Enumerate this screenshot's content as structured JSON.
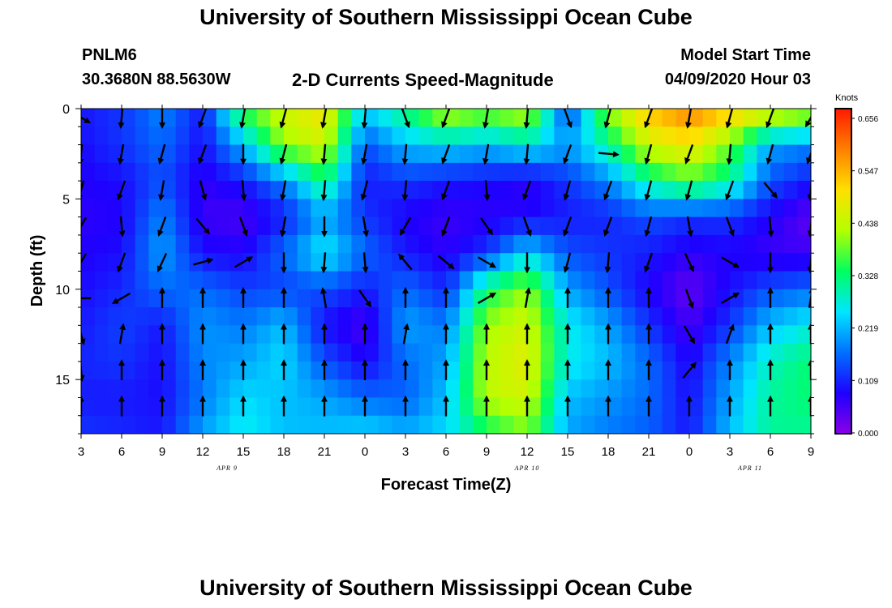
{
  "header": {
    "title": "University of Southern Mississippi Ocean Cube",
    "station": "PNLM6",
    "coords": "30.3680N 88.5630W",
    "subtitle": "2-D Currents Speed-Magnitude",
    "model_label": "Model Start Time",
    "model_time": "04/09/2020 Hour 03"
  },
  "footer": {
    "title": "University of Southern Mississippi Ocean Cube"
  },
  "colorbar": {
    "unit": "Knots",
    "ticks": [
      "0.656",
      "0.547",
      "0.438",
      "0.328",
      "0.219",
      "0.109",
      "0.000"
    ],
    "colors": [
      "#8a00e6",
      "#1e00ff",
      "#0070ff",
      "#00e6ff",
      "#00ff60",
      "#b4ff00",
      "#ffe000",
      "#ff8000",
      "#ff1a00"
    ]
  },
  "chart_data": {
    "type": "heatmap",
    "title": "2-D Currents Speed-Magnitude",
    "xlabel": "Forecast Time(Z)",
    "ylabel": "Depth (ft)",
    "xlim": [
      0,
      54
    ],
    "ylim": [
      0,
      18
    ],
    "x_ticks": [
      {
        "pos": 0,
        "label": "3"
      },
      {
        "pos": 3,
        "label": "6"
      },
      {
        "pos": 6,
        "label": "9"
      },
      {
        "pos": 9,
        "label": "12"
      },
      {
        "pos": 12,
        "label": "15"
      },
      {
        "pos": 15,
        "label": "18"
      },
      {
        "pos": 18,
        "label": "21"
      },
      {
        "pos": 21,
        "label": "0"
      },
      {
        "pos": 24,
        "label": "3"
      },
      {
        "pos": 27,
        "label": "6"
      },
      {
        "pos": 30,
        "label": "9"
      },
      {
        "pos": 33,
        "label": "12"
      },
      {
        "pos": 36,
        "label": "15"
      },
      {
        "pos": 39,
        "label": "18"
      },
      {
        "pos": 42,
        "label": "21"
      },
      {
        "pos": 45,
        "label": "0"
      },
      {
        "pos": 48,
        "label": "3"
      },
      {
        "pos": 51,
        "label": "6"
      },
      {
        "pos": 54,
        "label": "9"
      }
    ],
    "date_labels": [
      {
        "pos": 10.8,
        "label": "APR 9"
      },
      {
        "pos": 33,
        "label": "APR 10"
      },
      {
        "pos": 49.5,
        "label": "APR 11"
      }
    ],
    "y_ticks": [
      {
        "pos": 0,
        "label": "0"
      },
      {
        "pos": 5,
        "label": "5"
      },
      {
        "pos": 10,
        "label": "10"
      },
      {
        "pos": 15,
        "label": "15"
      }
    ],
    "value_range": [
      0.0,
      0.656
    ],
    "depths": [
      0,
      2,
      4,
      6,
      8,
      10,
      12,
      14,
      16,
      18
    ],
    "columns": [
      {
        "t": 0,
        "speed": [
          0.1,
          0.09,
          0.08,
          0.07,
          0.08,
          0.09,
          0.1,
          0.11,
          0.1,
          0.12
        ]
      },
      {
        "t": 3,
        "speed": [
          0.12,
          0.12,
          0.09,
          0.08,
          0.09,
          0.11,
          0.13,
          0.12,
          0.1,
          0.11
        ]
      },
      {
        "t": 6,
        "speed": [
          0.18,
          0.16,
          0.14,
          0.18,
          0.2,
          0.16,
          0.1,
          0.09,
          0.09,
          0.1
        ]
      },
      {
        "t": 9,
        "speed": [
          0.1,
          0.09,
          0.07,
          0.06,
          0.09,
          0.16,
          0.19,
          0.18,
          0.17,
          0.2
        ]
      },
      {
        "t": 12,
        "speed": [
          0.36,
          0.22,
          0.1,
          0.05,
          0.08,
          0.13,
          0.17,
          0.2,
          0.24,
          0.26
        ]
      },
      {
        "t": 15,
        "speed": [
          0.44,
          0.4,
          0.18,
          0.1,
          0.16,
          0.13,
          0.22,
          0.24,
          0.22,
          0.22
        ]
      },
      {
        "t": 18,
        "speed": [
          0.48,
          0.44,
          0.32,
          0.2,
          0.26,
          0.14,
          0.09,
          0.14,
          0.2,
          0.22
        ]
      },
      {
        "t": 21,
        "speed": [
          0.24,
          0.14,
          0.1,
          0.12,
          0.16,
          0.1,
          0.05,
          0.08,
          0.16,
          0.24
        ]
      },
      {
        "t": 24,
        "speed": [
          0.32,
          0.22,
          0.12,
          0.08,
          0.1,
          0.16,
          0.2,
          0.16,
          0.15,
          0.21
        ]
      },
      {
        "t": 27,
        "speed": [
          0.44,
          0.24,
          0.1,
          0.06,
          0.07,
          0.11,
          0.17,
          0.2,
          0.22,
          0.24
        ]
      },
      {
        "t": 30,
        "speed": [
          0.4,
          0.22,
          0.09,
          0.07,
          0.12,
          0.32,
          0.4,
          0.42,
          0.42,
          0.32
        ]
      },
      {
        "t": 33,
        "speed": [
          0.44,
          0.26,
          0.07,
          0.08,
          0.24,
          0.4,
          0.44,
          0.46,
          0.44,
          0.38
        ]
      },
      {
        "t": 36,
        "speed": [
          0.12,
          0.2,
          0.12,
          0.1,
          0.14,
          0.2,
          0.26,
          0.26,
          0.22,
          0.2
        ]
      },
      {
        "t": 39,
        "speed": [
          0.4,
          0.3,
          0.18,
          0.11,
          0.12,
          0.14,
          0.2,
          0.22,
          0.19,
          0.17
        ]
      },
      {
        "t": 42,
        "speed": [
          0.52,
          0.44,
          0.3,
          0.14,
          0.1,
          0.08,
          0.12,
          0.16,
          0.16,
          0.15
        ]
      },
      {
        "t": 45,
        "speed": [
          0.58,
          0.48,
          0.36,
          0.12,
          0.07,
          0.03,
          0.05,
          0.08,
          0.09,
          0.1
        ]
      },
      {
        "t": 48,
        "speed": [
          0.52,
          0.38,
          0.3,
          0.12,
          0.08,
          0.09,
          0.12,
          0.18,
          0.2,
          0.22
        ]
      },
      {
        "t": 51,
        "speed": [
          0.48,
          0.2,
          0.14,
          0.08,
          0.06,
          0.14,
          0.22,
          0.28,
          0.3,
          0.3
        ]
      },
      {
        "t": 54,
        "speed": [
          0.44,
          0.18,
          0.1,
          0.03,
          0.06,
          0.16,
          0.26,
          0.32,
          0.32,
          0.3
        ]
      }
    ],
    "vectors": {
      "times": [
        0,
        3,
        6,
        9,
        12,
        15,
        18,
        21,
        24,
        27,
        30,
        33,
        36,
        39,
        42,
        45,
        48,
        51,
        54
      ],
      "depths": [
        0.5,
        2.5,
        4.5,
        6.5,
        8.5,
        10.5,
        12.5,
        14.5,
        16.5
      ],
      "directions_deg": [
        [
          120,
          185,
          180,
          200,
          190,
          195,
          190,
          185,
          160,
          200,
          190,
          185,
          160,
          195,
          200,
          190,
          195,
          200,
          210
        ],
        [
          185,
          190,
          195,
          200,
          180,
          195,
          185,
          190,
          185,
          200,
          190,
          185,
          200,
          95,
          195,
          200,
          185,
          195,
          200
        ],
        [
          195,
          200,
          190,
          165,
          175,
          190,
          185,
          195,
          185,
          200,
          175,
          200,
          195,
          200,
          195,
          195,
          200,
          140,
          185
        ],
        [
          210,
          175,
          200,
          140,
          160,
          190,
          180,
          170,
          210,
          200,
          145,
          160,
          200,
          200,
          195,
          170,
          160,
          175,
          185
        ],
        [
          210,
          200,
          205,
          75,
          60,
          180,
          185,
          175,
          320,
          130,
          120,
          180,
          195,
          185,
          200,
          155,
          120,
          180,
          185
        ],
        [
          270,
          240,
          0,
          0,
          0,
          0,
          350,
          145,
          0,
          0,
          60,
          10,
          0,
          0,
          0,
          160,
          60,
          0,
          10
        ],
        [
          165,
          10,
          0,
          0,
          0,
          0,
          0,
          0,
          10,
          0,
          0,
          0,
          0,
          0,
          0,
          150,
          20,
          0,
          0
        ],
        [
          175,
          0,
          0,
          0,
          0,
          0,
          0,
          0,
          0,
          0,
          0,
          0,
          0,
          0,
          0,
          40,
          0,
          0,
          0
        ],
        [
          0,
          0,
          0,
          0,
          0,
          0,
          0,
          0,
          0,
          0,
          0,
          0,
          0,
          0,
          0,
          0,
          0,
          0,
          0
        ]
      ]
    }
  }
}
